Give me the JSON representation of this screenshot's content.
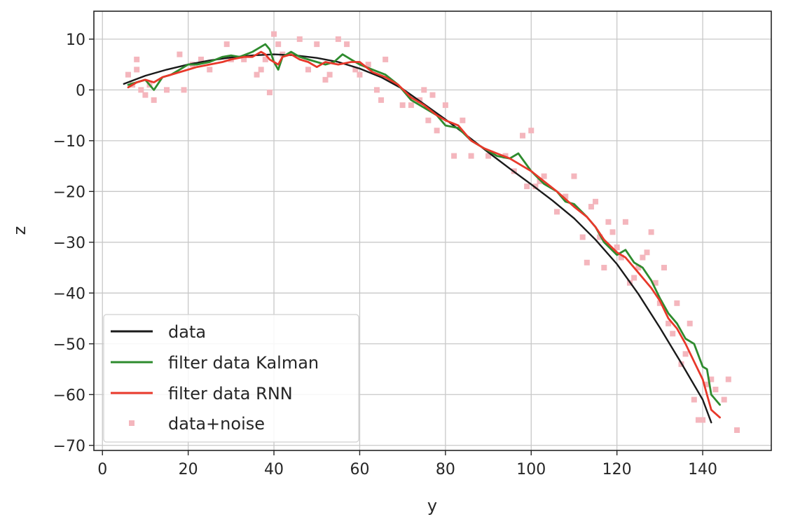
{
  "chart_data": {
    "type": "line",
    "title": "",
    "xlabel": "y",
    "ylabel": "z",
    "xlim": [
      -2,
      156
    ],
    "ylim": [
      -71,
      15.5
    ],
    "xticks": [
      0,
      20,
      40,
      60,
      80,
      100,
      120,
      140
    ],
    "yticks": [
      10,
      0,
      -10,
      -20,
      -30,
      -40,
      -50,
      -60,
      -70
    ],
    "grid": true,
    "legend_position": "lower-left",
    "colors": {
      "data": "#1a1a1a",
      "kalman": "#2e8b2e",
      "rnn": "#e8382a",
      "noise": "#f4b6bd",
      "grid": "#c8c8c8"
    },
    "series": [
      {
        "name": "data",
        "style": "line",
        "x": [
          5,
          10,
          15,
          20,
          25,
          30,
          35,
          40,
          45,
          50,
          55,
          60,
          65,
          70,
          75,
          80,
          85,
          90,
          95,
          100,
          105,
          110,
          115,
          120,
          125,
          130,
          135,
          140,
          142
        ],
        "y": [
          1.2,
          2.8,
          4.0,
          5.0,
          5.8,
          6.4,
          6.8,
          7.0,
          6.8,
          6.3,
          5.5,
          4.2,
          2.5,
          0.2,
          -2.8,
          -5.8,
          -9.0,
          -12.3,
          -15.5,
          -18.6,
          -21.8,
          -25.3,
          -29.5,
          -34.3,
          -40.2,
          -46.8,
          -53.8,
          -61.0,
          -65.5
        ]
      },
      {
        "name": "filter data Kalman",
        "style": "line",
        "x": [
          6,
          8,
          10,
          12,
          14,
          16,
          18,
          20,
          22,
          25,
          28,
          30,
          32,
          35,
          37,
          38,
          39,
          40,
          41,
          42,
          44,
          46,
          48,
          50,
          52,
          54,
          56,
          58,
          60,
          63,
          66,
          69,
          72,
          75,
          78,
          80,
          83,
          86,
          89,
          92,
          95,
          97,
          100,
          103,
          106,
          108,
          110,
          113,
          115,
          117,
          120,
          122,
          124,
          126,
          128,
          130,
          132,
          134,
          136,
          138,
          140,
          141,
          142,
          143,
          144
        ],
        "y": [
          1.0,
          1.5,
          2.0,
          0.0,
          2.5,
          3.0,
          4.0,
          5.0,
          5.0,
          5.5,
          6.5,
          6.8,
          6.5,
          7.5,
          8.5,
          9.0,
          8.0,
          5.5,
          4.0,
          6.5,
          7.5,
          6.5,
          6.0,
          5.5,
          5.0,
          5.5,
          7.0,
          6.0,
          5.0,
          4.0,
          3.0,
          1.0,
          -2.0,
          -3.5,
          -5.0,
          -7.0,
          -7.5,
          -10.0,
          -11.5,
          -13.0,
          -13.5,
          -12.5,
          -16.0,
          -18.5,
          -20.0,
          -22.0,
          -22.5,
          -25.0,
          -27.0,
          -30.0,
          -32.5,
          -31.5,
          -34.0,
          -35.0,
          -37.5,
          -41.0,
          -44.0,
          -46.0,
          -49.0,
          -50.0,
          -54.5,
          -55.0,
          -60.0,
          -61.0,
          -62.0
        ]
      },
      {
        "name": "filter data RNN",
        "style": "line",
        "x": [
          6,
          8,
          10,
          12,
          14,
          16,
          18,
          20,
          22,
          25,
          28,
          30,
          33,
          35,
          37,
          38,
          39,
          40,
          41,
          42,
          44,
          46,
          48,
          50,
          52,
          55,
          58,
          60,
          63,
          66,
          69,
          72,
          75,
          78,
          80,
          83,
          86,
          89,
          92,
          95,
          98,
          100,
          103,
          106,
          108,
          110,
          113,
          115,
          117,
          120,
          122,
          125,
          128,
          130,
          132,
          134,
          136,
          138,
          140,
          142,
          144
        ],
        "y": [
          0.5,
          1.5,
          2.0,
          1.5,
          2.5,
          3.0,
          3.5,
          4.0,
          4.5,
          5.0,
          5.5,
          6.0,
          6.5,
          6.5,
          7.5,
          7.0,
          6.0,
          5.5,
          5.0,
          6.5,
          7.0,
          6.0,
          5.5,
          4.5,
          5.5,
          5.0,
          5.5,
          5.5,
          3.5,
          2.5,
          1.0,
          -1.5,
          -3.0,
          -5.0,
          -6.0,
          -7.0,
          -10.0,
          -11.5,
          -12.5,
          -13.5,
          -15.0,
          -16.0,
          -18.0,
          -20.0,
          -21.5,
          -23.0,
          -25.0,
          -27.0,
          -29.5,
          -32.0,
          -33.0,
          -36.0,
          -39.0,
          -41.5,
          -45.0,
          -47.0,
          -50.0,
          -53.5,
          -57.0,
          -63.0,
          -64.5
        ]
      },
      {
        "name": "data+noise",
        "style": "scatter",
        "x": [
          6,
          7,
          8,
          8,
          9,
          10,
          11,
          12,
          15,
          18,
          19,
          21,
          23,
          25,
          29,
          30,
          33,
          36,
          37,
          38,
          39,
          40,
          41,
          42,
          46,
          48,
          50,
          52,
          53,
          55,
          57,
          59,
          60,
          62,
          64,
          65,
          66,
          70,
          72,
          74,
          75,
          76,
          77,
          78,
          80,
          82,
          84,
          86,
          90,
          94,
          96,
          98,
          99,
          100,
          101,
          102,
          103,
          106,
          108,
          110,
          112,
          113,
          114,
          115,
          116,
          117,
          118,
          119,
          120,
          121,
          122,
          123,
          124,
          125,
          126,
          127,
          128,
          129,
          130,
          131,
          132,
          133,
          134,
          135,
          136,
          137,
          138,
          139,
          140,
          141,
          142,
          143,
          145,
          146,
          148
        ],
        "y": [
          3,
          1,
          4,
          6,
          0,
          -1,
          1,
          -2,
          0,
          7,
          0,
          5,
          6,
          4,
          9,
          6,
          6,
          3,
          4,
          6,
          -0.5,
          11,
          9,
          7,
          10,
          4,
          9,
          2,
          3,
          10,
          9,
          4,
          3,
          5,
          0,
          -2,
          6,
          -3,
          -3,
          -2,
          0,
          -6,
          -1,
          -8,
          -3,
          -13,
          -6,
          -13,
          -13,
          -13,
          -16,
          -9,
          -19,
          -8,
          -19,
          -18,
          -17,
          -24,
          -21,
          -17,
          -29,
          -34,
          -23,
          -22,
          -29,
          -35,
          -26,
          -28,
          -31,
          -33,
          -26,
          -38,
          -37,
          -35,
          -33,
          -32,
          -28,
          -38,
          -42,
          -35,
          -46,
          -48,
          -42,
          -54,
          -52,
          -46,
          -61,
          -65,
          -65,
          -58,
          -57,
          -59,
          -61,
          -57,
          -67
        ]
      }
    ]
  }
}
